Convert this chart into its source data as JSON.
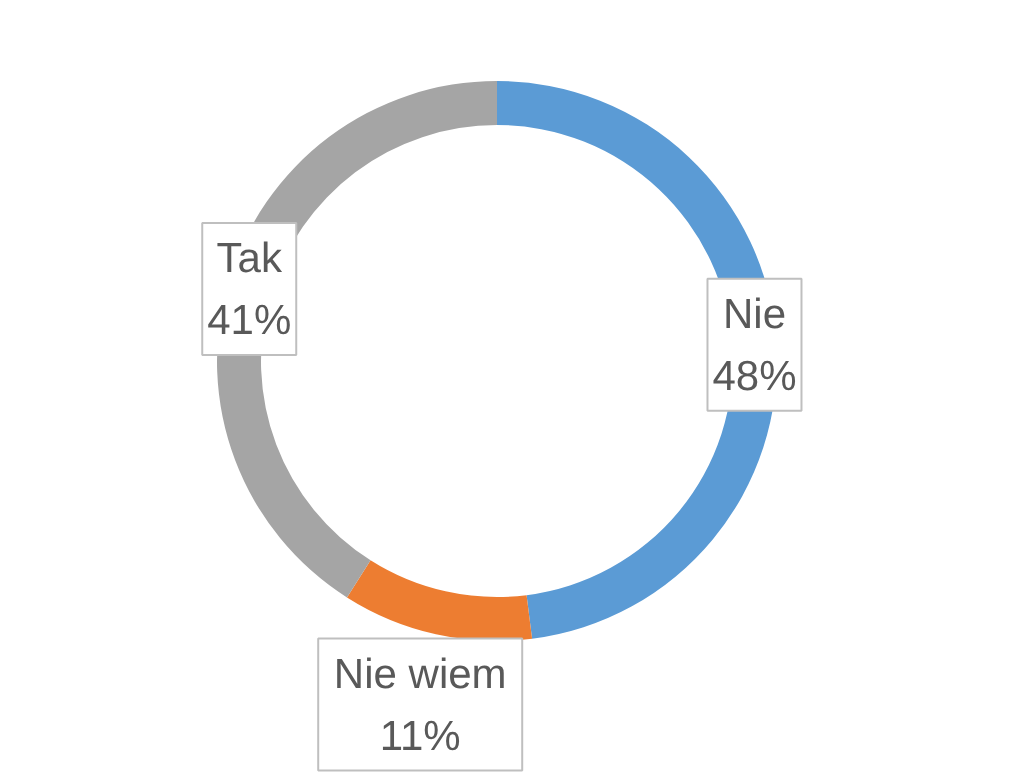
{
  "chart_data": {
    "type": "donut",
    "categories": [
      "Nie",
      "Nie wiem",
      "Tak"
    ],
    "values": [
      48,
      11,
      41
    ],
    "colors": [
      "#5b9bd5",
      "#ed7d31",
      "#a5a5a5"
    ],
    "value_labels": [
      "48%",
      "11%",
      "41%"
    ]
  }
}
